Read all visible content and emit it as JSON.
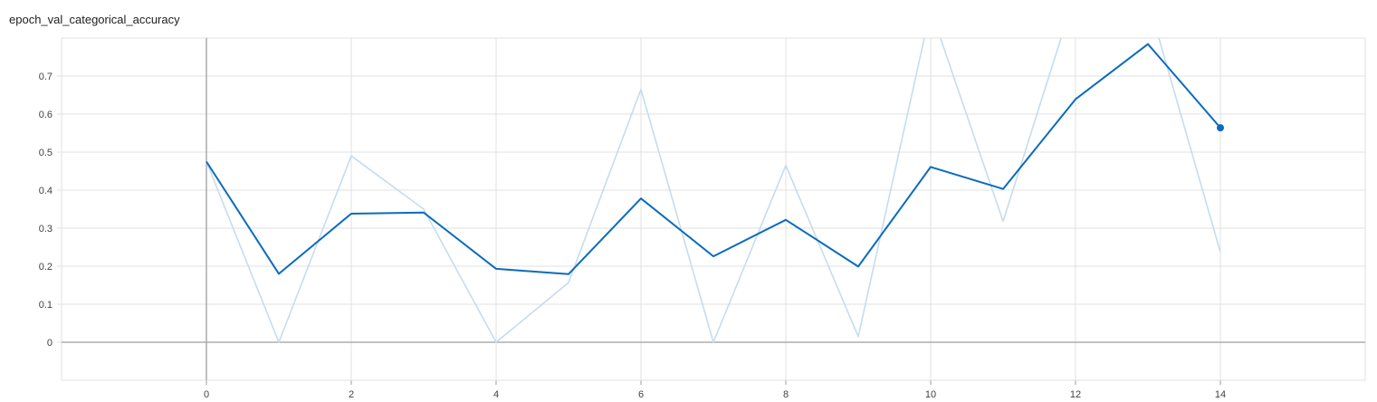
{
  "chart_data": {
    "type": "line",
    "title": "epoch_val_categorical_accuracy",
    "xlabel": "",
    "ylabel": "",
    "xlim": [
      -2,
      16
    ],
    "ylim": [
      -0.1,
      0.8
    ],
    "x_ticks": [
      "0",
      "2",
      "4",
      "6",
      "8",
      "10",
      "12",
      "14"
    ],
    "y_ticks": [
      "0",
      "0.1",
      "0.2",
      "0.3",
      "0.4",
      "0.5",
      "0.6",
      "0.7"
    ],
    "grid": true,
    "colors": {
      "smoothed": "#0b6bbd",
      "raw": "#c6dcee",
      "grid": "#e0e0e0",
      "axis": "#9e9e9e"
    },
    "series": [
      {
        "role": "raw",
        "x": [
          0,
          1,
          2,
          3,
          4,
          5,
          6,
          7,
          8,
          9,
          10,
          11,
          12,
          13,
          14
        ],
        "values": [
          0.475,
          0.0,
          0.49,
          0.35,
          0.0,
          0.157,
          0.665,
          0.0,
          0.465,
          0.015,
          0.875,
          0.318,
          0.92,
          0.9,
          0.237
        ]
      },
      {
        "role": "smoothed",
        "x": [
          0,
          1,
          2,
          3,
          4,
          5,
          6,
          7,
          8,
          9,
          10,
          11,
          12,
          13,
          14
        ],
        "values": [
          0.475,
          0.18,
          0.338,
          0.341,
          0.193,
          0.179,
          0.378,
          0.226,
          0.322,
          0.199,
          0.461,
          0.403,
          0.639,
          0.784,
          0.564
        ]
      }
    ]
  }
}
